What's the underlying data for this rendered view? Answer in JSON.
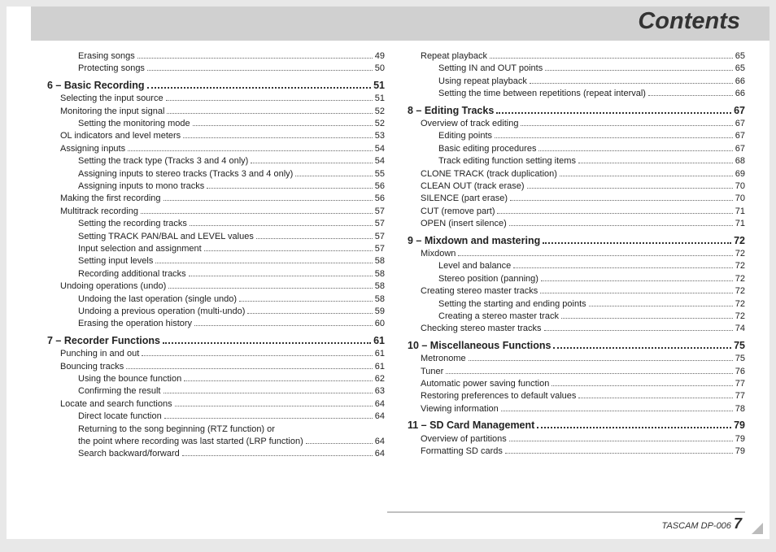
{
  "title": "Contents",
  "footer_model": "TASCAM  DP-006",
  "footer_page": "7",
  "columns": [
    [
      {
        "lvl": 2,
        "label": "Erasing songs",
        "pg": "49"
      },
      {
        "lvl": 2,
        "label": "Protecting songs",
        "pg": "50"
      },
      {
        "section": true,
        "label": "6 – Basic Recording",
        "pg": "51"
      },
      {
        "lvl": 1,
        "label": "Selecting the input source",
        "pg": "51"
      },
      {
        "lvl": 1,
        "label": "Monitoring the input signal",
        "pg": "52"
      },
      {
        "lvl": 2,
        "label": "Setting the monitoring mode",
        "pg": "52"
      },
      {
        "lvl": 1,
        "label": "OL indicators and level meters",
        "pg": "53"
      },
      {
        "lvl": 1,
        "label": "Assigning inputs",
        "pg": "54"
      },
      {
        "lvl": 2,
        "label": "Setting the track type (Tracks 3 and 4 only)",
        "pg": "54"
      },
      {
        "lvl": 2,
        "label": "Assigning inputs to stereo tracks (Tracks 3 and 4 only)",
        "pg": "55"
      },
      {
        "lvl": 2,
        "label": "Assigning inputs to mono tracks",
        "pg": "56"
      },
      {
        "lvl": 1,
        "label": "Making the first recording",
        "pg": "56"
      },
      {
        "lvl": 1,
        "label": "Multitrack recording",
        "pg": "57"
      },
      {
        "lvl": 2,
        "label": "Setting the recording tracks",
        "pg": "57"
      },
      {
        "lvl": 2,
        "label": "Setting TRACK PAN/BAL and LEVEL values",
        "pg": "57"
      },
      {
        "lvl": 2,
        "label": "Input selection and assignment",
        "pg": "57"
      },
      {
        "lvl": 2,
        "label": "Setting input levels",
        "pg": "58"
      },
      {
        "lvl": 2,
        "label": "Recording additional tracks",
        "pg": "58"
      },
      {
        "lvl": 1,
        "label": "Undoing operations (undo)",
        "pg": "58"
      },
      {
        "lvl": 2,
        "label": "Undoing the last operation (single undo)",
        "pg": "58"
      },
      {
        "lvl": 2,
        "label": "Undoing a previous operation (multi-undo)",
        "pg": "59"
      },
      {
        "lvl": 2,
        "label": "Erasing the operation history",
        "pg": "60"
      },
      {
        "section": true,
        "label": "7 – Recorder Functions",
        "pg": "61"
      },
      {
        "lvl": 1,
        "label": "Punching in and out",
        "pg": "61"
      },
      {
        "lvl": 1,
        "label": "Bouncing tracks",
        "pg": "61"
      },
      {
        "lvl": 2,
        "label": "Using the bounce function",
        "pg": "62"
      },
      {
        "lvl": 2,
        "label": "Confirming the result",
        "pg": "63"
      },
      {
        "lvl": 1,
        "label": "Locate and search functions",
        "pg": "64"
      },
      {
        "lvl": 2,
        "label": "Direct locate function",
        "pg": "64"
      },
      {
        "lvl": 2,
        "wrap": true,
        "label": "Returning to the song beginning (RTZ function) or",
        "nopg": true
      },
      {
        "lvl": 2,
        "label": "the point where recording was last started (LRP function)",
        "pg": "64"
      },
      {
        "lvl": 2,
        "label": "Search backward/forward",
        "pg": "64"
      }
    ],
    [
      {
        "lvl": 1,
        "label": "Repeat playback",
        "pg": "65"
      },
      {
        "lvl": 2,
        "label": "Setting IN and OUT points",
        "pg": "65"
      },
      {
        "lvl": 2,
        "label": "Using repeat playback",
        "pg": "66"
      },
      {
        "lvl": 2,
        "label": "Setting the time between repetitions (repeat interval)",
        "pg": "66"
      },
      {
        "section": true,
        "label": "8 – Editing Tracks",
        "pg": "67"
      },
      {
        "lvl": 1,
        "label": "Overview of track editing",
        "pg": "67"
      },
      {
        "lvl": 2,
        "label": "Editing points",
        "pg": "67"
      },
      {
        "lvl": 2,
        "label": "Basic editing procedures",
        "pg": "67"
      },
      {
        "lvl": 2,
        "label": "Track editing function setting items",
        "pg": "68"
      },
      {
        "lvl": 1,
        "label": "CLONE TRACK (track duplication)",
        "pg": "69"
      },
      {
        "lvl": 1,
        "label": "CLEAN OUT (track erase)",
        "pg": "70"
      },
      {
        "lvl": 1,
        "label": "SILENCE (part erase)",
        "pg": "70"
      },
      {
        "lvl": 1,
        "label": "CUT (remove part)",
        "pg": "71"
      },
      {
        "lvl": 1,
        "label": "OPEN (insert silence)",
        "pg": "71"
      },
      {
        "section": true,
        "label": "9 – Mixdown and mastering",
        "pg": "72"
      },
      {
        "lvl": 1,
        "label": "Mixdown",
        "pg": "72"
      },
      {
        "lvl": 2,
        "label": "Level and balance",
        "pg": "72"
      },
      {
        "lvl": 2,
        "label": "Stereo position (panning)",
        "pg": "72"
      },
      {
        "lvl": 1,
        "label": "Creating stereo master tracks",
        "pg": "72"
      },
      {
        "lvl": 2,
        "label": "Setting the starting and ending points",
        "pg": "72"
      },
      {
        "lvl": 2,
        "label": "Creating a stereo master track",
        "pg": "72"
      },
      {
        "lvl": 1,
        "label": "Checking stereo master tracks",
        "pg": "74"
      },
      {
        "section": true,
        "label": "10 – Miscellaneous Functions",
        "pg": "75"
      },
      {
        "lvl": 1,
        "label": "Metronome",
        "pg": "75"
      },
      {
        "lvl": 1,
        "label": "Tuner",
        "pg": "76"
      },
      {
        "lvl": 1,
        "label": "Automatic power saving function",
        "pg": "77"
      },
      {
        "lvl": 1,
        "label": "Restoring preferences to default values",
        "pg": "77"
      },
      {
        "lvl": 1,
        "label": "Viewing information",
        "pg": "78"
      },
      {
        "section": true,
        "label": "11 – SD Card Management",
        "pg": "79"
      },
      {
        "lvl": 1,
        "label": "Overview of partitions",
        "pg": "79"
      },
      {
        "lvl": 1,
        "label": "Formatting SD cards",
        "pg": "79"
      }
    ]
  ]
}
